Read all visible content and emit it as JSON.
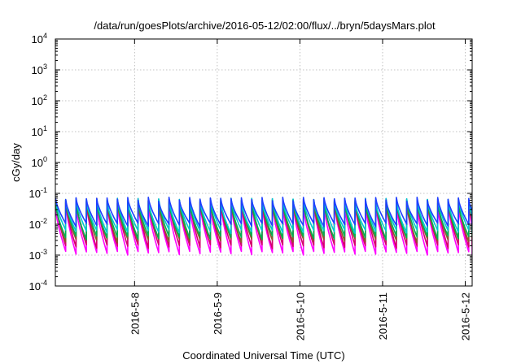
{
  "chart_data": {
    "type": "line",
    "title": "/data/run/goesPlots/archive/2016-05-12/02:00/flux/../bryn/5daysMars.plot",
    "xlabel": "Coordinated Universal Time (UTC)",
    "ylabel": "cGy/day",
    "yscale": "log",
    "ylim": [
      0.0001,
      10000
    ],
    "xlim": [
      "2016-05-07 01:00",
      "2016-05-12 02:00"
    ],
    "x_ticks": [
      "2016-5-8",
      "2016-5-9",
      "2016-5-10",
      "2016-5-11",
      "2016-5-12"
    ],
    "y_ticks": [
      {
        "base": "10",
        "exp": "-4"
      },
      {
        "base": "10",
        "exp": "-3"
      },
      {
        "base": "10",
        "exp": "-2"
      },
      {
        "base": "10",
        "exp": "-1"
      },
      {
        "base": "10",
        "exp": "0"
      },
      {
        "base": "10",
        "exp": "1"
      },
      {
        "base": "10",
        "exp": "2"
      },
      {
        "base": "10",
        "exp": "3"
      },
      {
        "base": "10",
        "exp": "4"
      }
    ],
    "grid": true,
    "sawtooth_period_hours": 3,
    "series": [
      {
        "color": "#ff00ff",
        "peak": 0.045,
        "trough": 0.0011
      },
      {
        "color": "#d4006a",
        "peak": 0.06,
        "trough": 0.0018
      },
      {
        "color": "#8a5a2a",
        "peak": 0.05,
        "trough": 0.0028
      },
      {
        "color": "#00b050",
        "peak": 0.055,
        "trough": 0.0035
      },
      {
        "color": "#00c8d0",
        "peak": 0.06,
        "trough": 0.0055
      },
      {
        "color": "#1f3fff",
        "peak": 0.065,
        "trough": 0.009
      }
    ]
  }
}
